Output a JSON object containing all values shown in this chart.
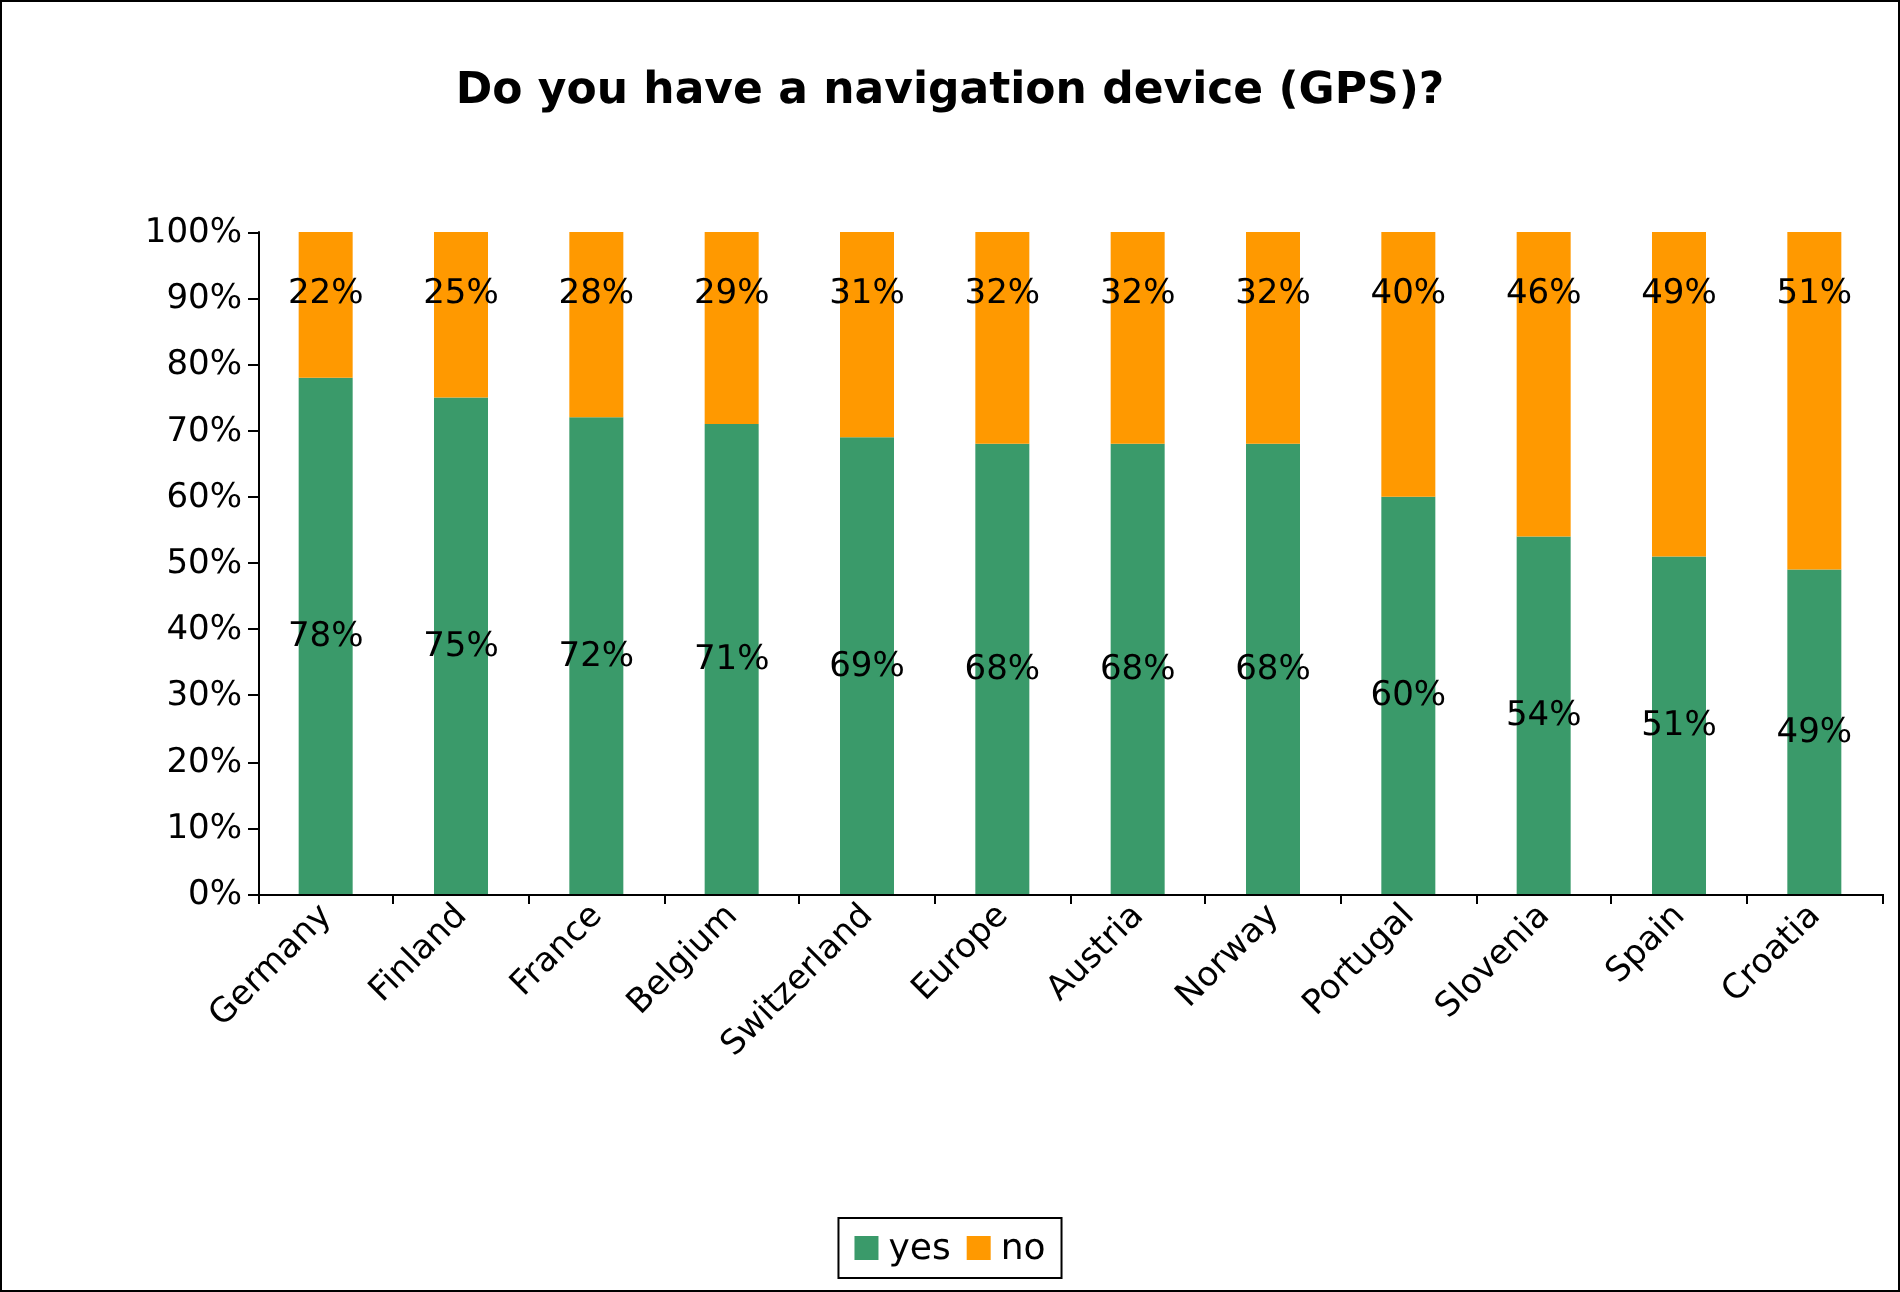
{
  "chart_data": {
    "type": "bar",
    "title": "Do you have a navigation device (GPS)?",
    "stacked": true,
    "legend": "bottom",
    "categories": [
      "Germany",
      "Finland",
      "France",
      "Belgium",
      "Switzerland",
      "Europe",
      "Austria",
      "Norway",
      "Portugal",
      "Slovenia",
      "Spain",
      "Croatia"
    ],
    "series": [
      {
        "name": "yes",
        "color": "#3a9a6a",
        "values": [
          78,
          75,
          72,
          71,
          69,
          68,
          68,
          68,
          60,
          54,
          51,
          49
        ],
        "value_labels": [
          "78%",
          "75%",
          "72%",
          "71%",
          "69%",
          "68%",
          "68%",
          "68%",
          "60%",
          "54%",
          "51%",
          "49%"
        ]
      },
      {
        "name": "no",
        "color": "#ff9900",
        "values": [
          22,
          25,
          28,
          29,
          31,
          32,
          32,
          32,
          40,
          46,
          49,
          51
        ],
        "value_labels": [
          "22%",
          "25%",
          "28%",
          "29%",
          "31%",
          "32%",
          "32%",
          "32%",
          "40%",
          "46%",
          "49%",
          "51%"
        ]
      }
    ],
    "ylim": [
      0,
      100
    ],
    "yticks": [
      {
        "value": 0,
        "label": "0%"
      },
      {
        "value": 10,
        "label": "10%"
      },
      {
        "value": 20,
        "label": "20%"
      },
      {
        "value": 30,
        "label": "30%"
      },
      {
        "value": 40,
        "label": "40%"
      },
      {
        "value": 50,
        "label": "50%"
      },
      {
        "value": 60,
        "label": "60%"
      },
      {
        "value": 70,
        "label": "70%"
      },
      {
        "value": 80,
        "label": "80%"
      },
      {
        "value": 90,
        "label": "90%"
      },
      {
        "value": 100,
        "label": "100%"
      }
    ]
  }
}
